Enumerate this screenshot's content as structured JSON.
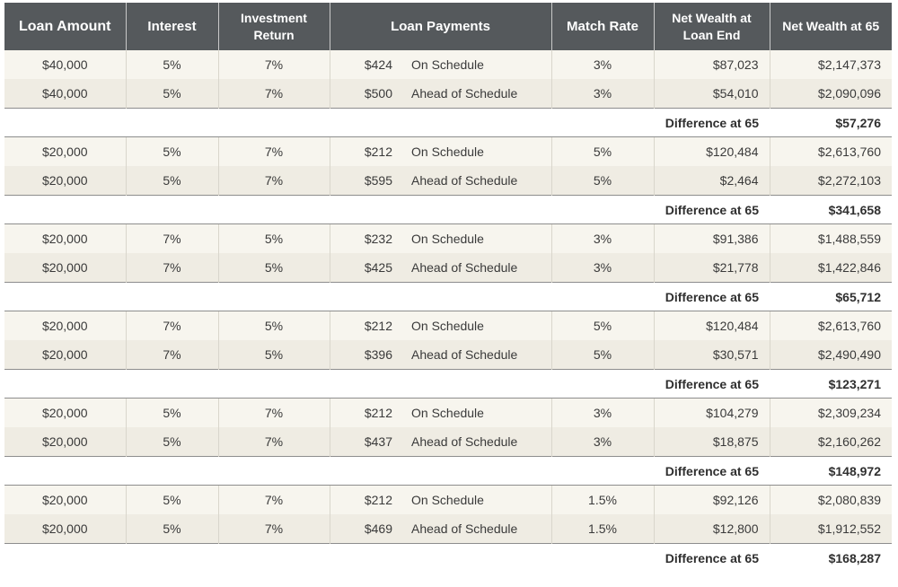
{
  "headers": {
    "loan_amount": "Loan Amount",
    "interest": "Interest",
    "investment_return": "Investment Return",
    "loan_payments": "Loan Payments",
    "match_rate": "Match Rate",
    "net_wealth_loan_end": "Net Wealth at Loan End",
    "net_wealth_65": "Net Wealth at 65"
  },
  "difference_label": "Difference at 65",
  "groups": [
    {
      "rows": [
        {
          "loan_amount": "$40,000",
          "interest": "5%",
          "investment_return": "7%",
          "payment": "$424",
          "schedule": "On Schedule",
          "match_rate": "3%",
          "net_wealth_loan_end": "$87,023",
          "net_wealth_65": "$2,147,373"
        },
        {
          "loan_amount": "$40,000",
          "interest": "5%",
          "investment_return": "7%",
          "payment": "$500",
          "schedule": "Ahead of Schedule",
          "match_rate": "3%",
          "net_wealth_loan_end": "$54,010",
          "net_wealth_65": "$2,090,096"
        }
      ],
      "difference": "$57,276"
    },
    {
      "rows": [
        {
          "loan_amount": "$20,000",
          "interest": "5%",
          "investment_return": "7%",
          "payment": "$212",
          "schedule": "On Schedule",
          "match_rate": "5%",
          "net_wealth_loan_end": "$120,484",
          "net_wealth_65": "$2,613,760"
        },
        {
          "loan_amount": "$20,000",
          "interest": "5%",
          "investment_return": "7%",
          "payment": "$595",
          "schedule": "Ahead of Schedule",
          "match_rate": "5%",
          "net_wealth_loan_end": "$2,464",
          "net_wealth_65": "$2,272,103"
        }
      ],
      "difference": "$341,658"
    },
    {
      "rows": [
        {
          "loan_amount": "$20,000",
          "interest": "7%",
          "investment_return": "5%",
          "payment": "$232",
          "schedule": "On Schedule",
          "match_rate": "3%",
          "net_wealth_loan_end": "$91,386",
          "net_wealth_65": "$1,488,559"
        },
        {
          "loan_amount": "$20,000",
          "interest": "7%",
          "investment_return": "5%",
          "payment": "$425",
          "schedule": "Ahead of Schedule",
          "match_rate": "3%",
          "net_wealth_loan_end": "$21,778",
          "net_wealth_65": "$1,422,846"
        }
      ],
      "difference": "$65,712"
    },
    {
      "rows": [
        {
          "loan_amount": "$20,000",
          "interest": "7%",
          "investment_return": "5%",
          "payment": "$212",
          "schedule": "On Schedule",
          "match_rate": "5%",
          "net_wealth_loan_end": "$120,484",
          "net_wealth_65": "$2,613,760"
        },
        {
          "loan_amount": "$20,000",
          "interest": "7%",
          "investment_return": "5%",
          "payment": "$396",
          "schedule": "Ahead of Schedule",
          "match_rate": "5%",
          "net_wealth_loan_end": "$30,571",
          "net_wealth_65": "$2,490,490"
        }
      ],
      "difference": "$123,271"
    },
    {
      "rows": [
        {
          "loan_amount": "$20,000",
          "interest": "5%",
          "investment_return": "7%",
          "payment": "$212",
          "schedule": "On Schedule",
          "match_rate": "3%",
          "net_wealth_loan_end": "$104,279",
          "net_wealth_65": "$2,309,234"
        },
        {
          "loan_amount": "$20,000",
          "interest": "5%",
          "investment_return": "7%",
          "payment": "$437",
          "schedule": "Ahead of Schedule",
          "match_rate": "3%",
          "net_wealth_loan_end": "$18,875",
          "net_wealth_65": "$2,160,262"
        }
      ],
      "difference": "$148,972"
    },
    {
      "rows": [
        {
          "loan_amount": "$20,000",
          "interest": "5%",
          "investment_return": "7%",
          "payment": "$212",
          "schedule": "On Schedule",
          "match_rate": "1.5%",
          "net_wealth_loan_end": "$92,126",
          "net_wealth_65": "$2,080,839"
        },
        {
          "loan_amount": "$20,000",
          "interest": "5%",
          "investment_return": "7%",
          "payment": "$469",
          "schedule": "Ahead of Schedule",
          "match_rate": "1.5%",
          "net_wealth_loan_end": "$12,800",
          "net_wealth_65": "$1,912,552"
        }
      ],
      "difference": "$168,287"
    }
  ]
}
